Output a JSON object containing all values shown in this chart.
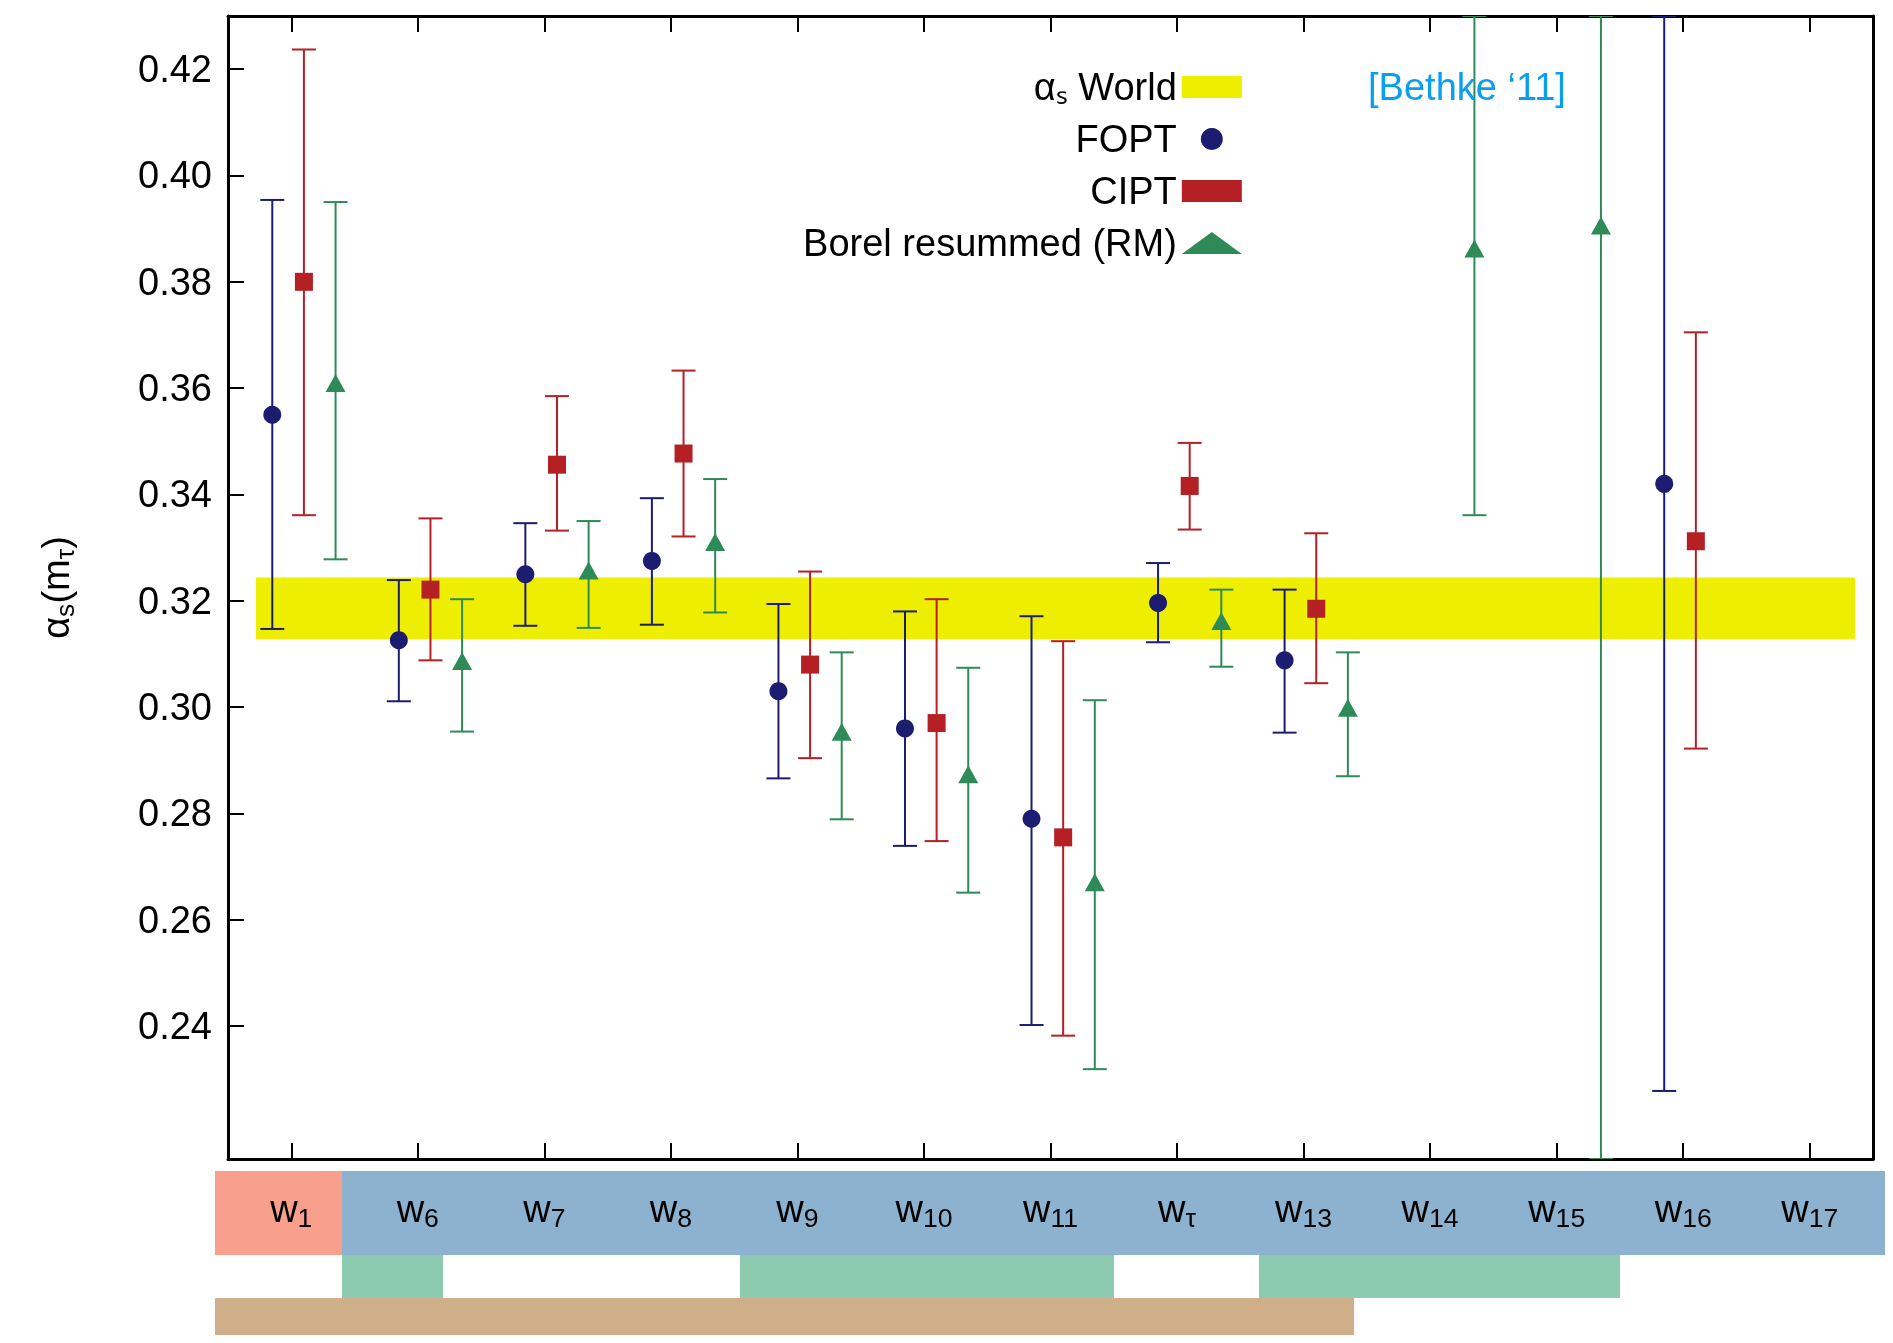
{
  "chart_data": {
    "type": "scatter",
    "ylabel": "α$_{s}$(m$_{τ}$)",
    "categories": [
      "w$_{1}$",
      "w$_{6}$",
      "w$_{7}$",
      "w$_{8}$",
      "w$_{9}$",
      "w$_{10}$",
      "w$_{11}$",
      "w$_{τ}$",
      "w$_{13}$",
      "w$_{14}$",
      "w$_{15}$",
      "w$_{16}$",
      "w$_{17}$"
    ],
    "series": [
      {
        "name": "FOPT",
        "color": "#1c1c70",
        "marker": "circle",
        "values": [
          0.355,
          0.3126,
          0.325,
          0.3275,
          0.303,
          0.296,
          0.279,
          0.3196,
          0.3088,
          null,
          null,
          0.342,
          null
        ],
        "errors": [
          [
            0.3147,
            0.3954
          ],
          [
            0.3011,
            0.3239
          ],
          [
            0.3153,
            0.3346
          ],
          [
            0.3155,
            0.3393
          ],
          [
            0.2866,
            0.3194
          ],
          [
            0.2739,
            0.318
          ],
          [
            0.2402,
            0.3171
          ],
          [
            0.3122,
            0.3271
          ],
          [
            0.2952,
            0.3221
          ],
          null,
          null,
          [
            0.2278,
            0.43
          ],
          null
        ]
      },
      {
        "name": "CIPT",
        "color": "#b52025",
        "marker": "square",
        "values": [
          0.38,
          0.3221,
          0.3456,
          0.3477,
          0.308,
          0.297,
          0.2755,
          0.3416,
          0.3185,
          null,
          null,
          0.3312,
          null
        ],
        "errors": [
          [
            0.3361,
            0.4237
          ],
          [
            0.3088,
            0.3355
          ],
          [
            0.3332,
            0.3585
          ],
          [
            0.3321,
            0.3633
          ],
          [
            0.2904,
            0.3255
          ],
          [
            0.2748,
            0.3203
          ],
          [
            0.2382,
            0.3124
          ],
          [
            0.3334,
            0.3497
          ],
          [
            0.3045,
            0.3327
          ],
          null,
          null,
          [
            0.2922,
            0.3705
          ],
          null
        ]
      },
      {
        "name": "Borel resummed (RM)",
        "color": "#2e8b57",
        "marker": "triangle",
        "values": [
          0.3606,
          0.3083,
          0.3253,
          0.3307,
          0.295,
          0.287,
          0.2667,
          0.3158,
          0.2995,
          0.3859,
          0.3902,
          null,
          null
        ],
        "errors": [
          [
            0.3278,
            0.395
          ],
          [
            0.2954,
            0.3203
          ],
          [
            0.3149,
            0.335
          ],
          [
            0.3178,
            0.3429
          ],
          [
            0.2789,
            0.3103
          ],
          [
            0.2651,
            0.3074
          ],
          [
            0.2319,
            0.3013
          ],
          [
            0.3076,
            0.3221
          ],
          [
            0.287,
            0.3103
          ],
          [
            0.3361,
            0.43
          ],
          [
            0.215,
            0.43
          ],
          null,
          null
        ]
      }
    ],
    "bands": [
      {
        "axis": "y",
        "from": 0.3128,
        "to": 0.3244,
        "label": "αₛ World",
        "color": "#eeee00"
      }
    ],
    "annotations": [
      "[Bethke ‘11]"
    ],
    "ylim": [
      0.215,
      0.43
    ],
    "yticks": [
      0.24,
      0.26,
      0.28,
      {
        "value": 0.3,
        "label": "0.30"
      },
      0.32,
      0.34,
      0.36,
      0.38,
      {
        "value": 0.4,
        "label": "0.40"
      },
      0.42
    ],
    "grid": false,
    "legend": "top right"
  }
}
